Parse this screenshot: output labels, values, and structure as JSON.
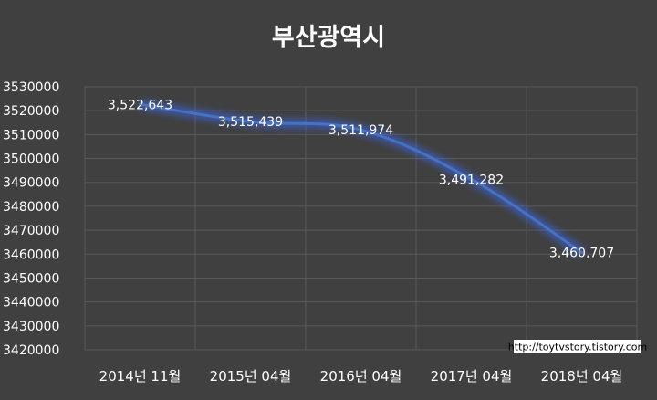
{
  "chart_data": {
    "type": "line",
    "title": "부산광역시",
    "categories": [
      "2014년 11월",
      "2015년 04월",
      "2016년 04월",
      "2017년 04월",
      "2018년 04월"
    ],
    "series": [
      {
        "values": [
          3522643,
          3515439,
          3511974,
          3491282,
          3460707
        ],
        "labels": [
          "3,522,643",
          "3,515,439",
          "3,511,974",
          "3,491,282",
          "3,460,707"
        ]
      }
    ],
    "yticks": [
      "3530000",
      "3520000",
      "3510000",
      "3500000",
      "3490000",
      "3480000",
      "3470000",
      "3460000",
      "3450000",
      "3440000",
      "3430000",
      "3420000"
    ],
    "ylim": [
      3420000,
      3530000
    ],
    "grid": true,
    "line_color": "#4472c4",
    "glow_color": "#3d6bff"
  },
  "watermark": "http://toytvstory.tistory.com"
}
